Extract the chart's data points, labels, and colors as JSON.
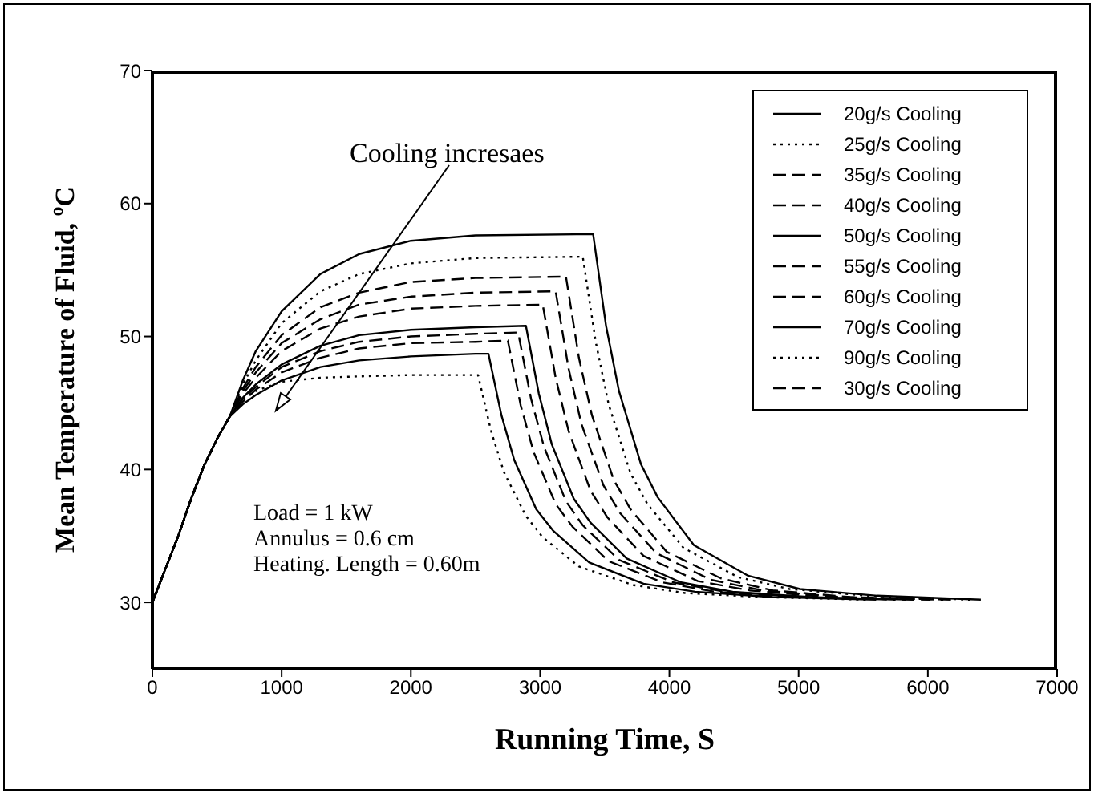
{
  "chart_data": {
    "type": "line",
    "xlabel": "Running Time, S",
    "ylabel": "Mean Temperature of Fluid, $^{o}$C",
    "xlim": [
      0,
      7000
    ],
    "xticks": [
      0,
      1000,
      2000,
      3000,
      4000,
      5000,
      6000,
      7000
    ],
    "ylim": [
      25,
      70
    ],
    "yticks": [
      30,
      40,
      50,
      60,
      70
    ],
    "legend": "top right",
    "marker": "none",
    "annotations": [
      "Cooling incresaes",
      "Load = 1 kW",
      "Annulus = 0.6 cm",
      "Heating. Length = 0.60m"
    ],
    "series": [
      {
        "name": "20g/s Cooling",
        "color": "#000000",
        "line_style": "solid",
        "x": [
          0,
          100,
          200,
          300,
          400,
          500,
          600,
          700,
          800,
          1000,
          1300,
          1600,
          2000,
          2500,
          3410,
          3510,
          3610,
          3780,
          3910,
          4190,
          4610,
          5010,
          5610,
          6410
        ],
        "values": [
          30,
          32.5,
          35,
          37.8,
          40.3,
          42.3,
          44,
          46.7,
          48.9,
          51.9,
          54.7,
          56.2,
          57.2,
          57.6,
          57.7,
          50.8,
          45.9,
          40.4,
          37.9,
          34.3,
          32.0,
          31.0,
          30.5,
          30.2
        ]
      },
      {
        "name": "25g/s Cooling",
        "color": "#000000",
        "line_style": "dotted",
        "x": [
          0,
          100,
          200,
          300,
          400,
          500,
          600,
          700,
          800,
          1000,
          1300,
          1600,
          2000,
          2500,
          3330,
          3430,
          3530,
          3700,
          3830,
          4110,
          4530,
          4930,
          5530,
          6330
        ],
        "values": [
          30,
          32.5,
          35,
          37.8,
          40.3,
          42.3,
          44,
          46.4,
          48.2,
          51.0,
          53.4,
          54.7,
          55.5,
          55.9,
          56.0,
          49.6,
          44.9,
          39.7,
          37.4,
          34.1,
          31.9,
          31.0,
          30.5,
          30.2
        ]
      },
      {
        "name": "35g/s Cooling",
        "color": "#000000",
        "line_style": "dashed",
        "x": [
          0,
          100,
          200,
          300,
          400,
          500,
          600,
          700,
          800,
          1000,
          1300,
          1600,
          2000,
          2500,
          3120,
          3220,
          3320,
          3490,
          3620,
          3900,
          4320,
          4720,
          5320,
          6120
        ],
        "values": [
          30,
          32.5,
          35,
          37.8,
          40.3,
          42.3,
          44,
          45.9,
          47.3,
          49.5,
          51.3,
          52.4,
          53.0,
          53.3,
          53.4,
          47.6,
          43.4,
          38.8,
          36.7,
          33.7,
          31.7,
          30.9,
          30.4,
          30.2
        ]
      },
      {
        "name": "40g/s Cooling",
        "color": "#000000",
        "line_style": "dashed",
        "x": [
          0,
          100,
          200,
          300,
          400,
          500,
          600,
          700,
          800,
          1000,
          1300,
          1600,
          2000,
          2500,
          3020,
          3120,
          3220,
          3390,
          3520,
          3800,
          4220,
          4620,
          5220,
          6020
        ],
        "values": [
          30,
          32.5,
          35,
          37.8,
          40.3,
          42.3,
          44,
          45.7,
          46.9,
          48.9,
          50.6,
          51.5,
          52.1,
          52.3,
          52.4,
          46.9,
          42.9,
          38.4,
          36.4,
          33.5,
          31.6,
          30.9,
          30.4,
          30.2
        ]
      },
      {
        "name": "50g/s Cooling",
        "color": "#000000",
        "line_style": "solid",
        "x": [
          0,
          100,
          200,
          300,
          400,
          500,
          600,
          700,
          800,
          1000,
          1300,
          1600,
          2000,
          2500,
          2890,
          2990,
          3090,
          3260,
          3390,
          3670,
          4090,
          4490,
          5090,
          5890
        ],
        "values": [
          30,
          32.5,
          35,
          37.8,
          40.3,
          42.3,
          44,
          45.4,
          46.4,
          47.9,
          49.3,
          50.1,
          50.5,
          50.7,
          50.8,
          45.7,
          41.9,
          37.8,
          36.0,
          33.3,
          31.5,
          30.8,
          30.4,
          30.2
        ]
      },
      {
        "name": "55g/s Cooling",
        "color": "#000000",
        "line_style": "dashed",
        "x": [
          0,
          100,
          200,
          300,
          400,
          500,
          600,
          700,
          800,
          1000,
          1300,
          1600,
          2000,
          2500,
          2830,
          2930,
          3030,
          3200,
          3330,
          3610,
          4030,
          4430,
          5030,
          5830
        ],
        "values": [
          30,
          32.5,
          35,
          37.8,
          40.3,
          42.3,
          44,
          45.3,
          46.2,
          47.7,
          48.9,
          49.6,
          50.0,
          50.2,
          50.3,
          45.3,
          41.7,
          37.6,
          35.8,
          33.2,
          31.5,
          30.8,
          30.4,
          30.2
        ]
      },
      {
        "name": "60g/s Cooling",
        "color": "#000000",
        "line_style": "dashed",
        "x": [
          0,
          100,
          200,
          300,
          400,
          500,
          600,
          700,
          800,
          1000,
          1300,
          1600,
          2000,
          2500,
          2750,
          2850,
          2950,
          3120,
          3250,
          3530,
          3950,
          4350,
          4950,
          5750
        ],
        "values": [
          30,
          32.5,
          35,
          37.8,
          40.3,
          42.3,
          44,
          45.1,
          46.0,
          47.3,
          48.4,
          49.1,
          49.5,
          49.6,
          49.7,
          44.8,
          41.3,
          37.4,
          35.7,
          33.1,
          31.5,
          30.8,
          30.4,
          30.2
        ]
      },
      {
        "name": "70g/s Cooling",
        "color": "#000000",
        "line_style": "solid",
        "x": [
          0,
          100,
          200,
          300,
          400,
          500,
          600,
          700,
          800,
          1000,
          1300,
          1600,
          2000,
          2500,
          2600,
          2700,
          2800,
          2970,
          3100,
          3380,
          3800,
          4200,
          4800,
          5600
        ],
        "values": [
          30,
          32.5,
          35,
          37.8,
          40.3,
          42.3,
          44,
          44.9,
          45.6,
          46.7,
          47.7,
          48.2,
          48.5,
          48.7,
          48.7,
          44.1,
          40.7,
          37.0,
          35.4,
          33.0,
          31.4,
          30.8,
          30.4,
          30.2
        ]
      },
      {
        "name": "90g/s Cooling",
        "color": "#000000",
        "line_style": "dotted",
        "x": [
          0,
          100,
          200,
          300,
          400,
          500,
          600,
          700,
          800,
          1000,
          1300,
          1600,
          2000,
          2500,
          2520,
          2620,
          2720,
          2890,
          3020,
          3300,
          3720,
          4120,
          4720,
          5520
        ],
        "values": [
          30,
          32.5,
          35,
          37.8,
          40.3,
          42.3,
          44,
          45.3,
          45.9,
          46.6,
          46.9,
          47.0,
          47.1,
          47.1,
          47.1,
          42.9,
          39.8,
          36.5,
          34.9,
          32.7,
          31.3,
          30.7,
          30.4,
          30.2
        ]
      },
      {
        "name": "30g/s Cooling",
        "color": "#000000",
        "line_style": "dashed",
        "x": [
          0,
          100,
          200,
          300,
          400,
          500,
          600,
          700,
          800,
          1000,
          1300,
          1600,
          2000,
          2500,
          3200,
          3300,
          3400,
          3570,
          3700,
          3980,
          4400,
          4800,
          5400,
          6200
        ],
        "values": [
          30,
          32.5,
          35,
          37.8,
          40.3,
          42.3,
          44,
          46.1,
          47.7,
          50.1,
          52.2,
          53.3,
          54.1,
          54.4,
          54.5,
          48.4,
          44.1,
          39.2,
          37.0,
          33.8,
          31.8,
          30.9,
          30.4,
          30.2
        ]
      }
    ]
  }
}
